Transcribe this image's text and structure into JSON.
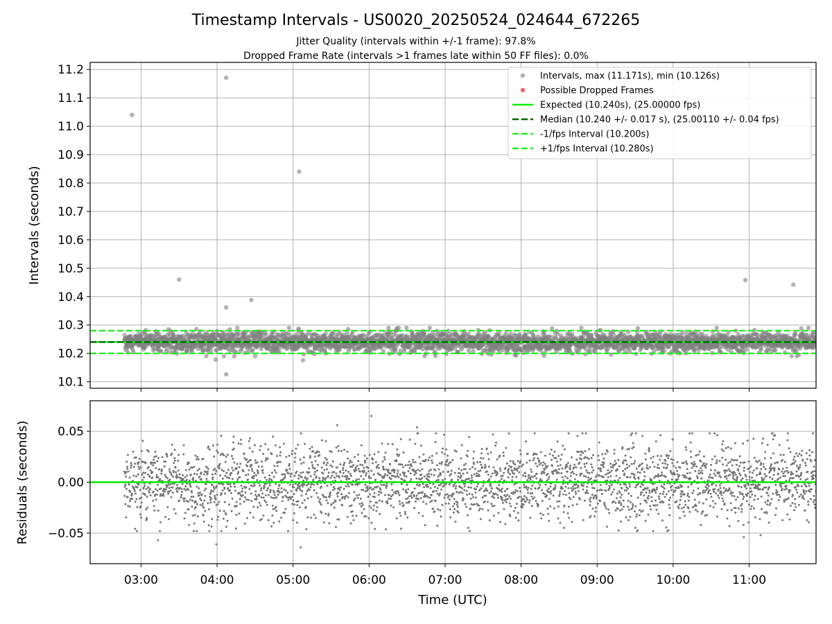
{
  "chart_data": [
    {
      "type": "scatter",
      "title": "Timestamp Intervals - US0020_20250524_024644_672265",
      "subtitle_lines": [
        "Jitter Quality (intervals within +/-1 frame): 97.8%",
        "Dropped Frame Rate (intervals >1 frames late within 50 FF files): 0.0%"
      ],
      "xlabel": "",
      "ylabel": "Intervals (seconds)",
      "x_unit": "time (UTC, hours)",
      "xlim": [
        2.33,
        11.88
      ],
      "ylim": [
        10.077,
        11.225
      ],
      "yticks": [
        10.1,
        10.2,
        10.3,
        10.4,
        10.5,
        10.6,
        10.7,
        10.8,
        10.9,
        11.0,
        11.1,
        11.2
      ],
      "ytick_labels": [
        "10.1",
        "10.2",
        "10.3",
        "10.4",
        "10.5",
        "10.6",
        "10.7",
        "10.8",
        "10.9",
        "11.0",
        "11.1",
        "11.2"
      ],
      "grid": true,
      "legend_position": "top-right",
      "legend": [
        "Intervals, max (11.171s), min (10.126s)",
        "Possible Dropped Frames",
        "Expected (10.240s), (25.00000 fps)",
        "Median (10.240 +/- 0.017 s), (25.00110 +/- 0.04 fps)",
        "-1/fps Interval (10.200s)",
        "+1/fps Interval (10.280s)"
      ],
      "series": [
        {
          "name": "Intervals, max (11.171s), min (10.126s)",
          "kind": "scatter",
          "color": "#808080",
          "x_range": [
            2.78,
            11.88
          ],
          "center": 10.24,
          "spread_sd": 0.017,
          "approx_count": 3140,
          "outliers": [
            {
              "x": 2.88,
              "y": 11.04
            },
            {
              "x": 4.12,
              "y": 11.171
            },
            {
              "x": 5.08,
              "y": 10.84
            },
            {
              "x": 3.5,
              "y": 10.46
            },
            {
              "x": 4.12,
              "y": 10.362
            },
            {
              "x": 4.45,
              "y": 10.388
            },
            {
              "x": 4.12,
              "y": 10.126
            },
            {
              "x": 10.95,
              "y": 10.458
            },
            {
              "x": 11.58,
              "y": 10.442
            },
            {
              "x": 3.98,
              "y": 10.178
            },
            {
              "x": 5.13,
              "y": 10.176
            }
          ]
        },
        {
          "name": "Possible Dropped Frames",
          "kind": "scatter",
          "color": "#f06464",
          "points": []
        },
        {
          "name": "Expected (10.240s), (25.00000 fps)",
          "kind": "hline",
          "y": 10.24,
          "color": "#00ee00",
          "style": "solid"
        },
        {
          "name": "Median (10.240 +/- 0.017 s), (25.00110 +/- 0.04 fps)",
          "kind": "hline",
          "y": 10.24,
          "color": "#006400",
          "style": "dashed"
        },
        {
          "name": "-1/fps Interval (10.200s)",
          "kind": "hline",
          "y": 10.2,
          "color": "#22ee22",
          "style": "dashed"
        },
        {
          "name": "+1/fps Interval (10.280s)",
          "kind": "hline",
          "y": 10.28,
          "color": "#22ee22",
          "style": "dashed"
        }
      ]
    },
    {
      "type": "scatter",
      "title": "",
      "xlabel": "Time (UTC)",
      "ylabel": "Residuals (seconds)",
      "x_unit": "time (UTC, hours)",
      "xlim": [
        2.33,
        11.88
      ],
      "ylim": [
        -0.08,
        0.08
      ],
      "xticks": [
        3,
        4,
        5,
        6,
        7,
        8,
        9,
        10,
        11
      ],
      "xtick_labels": [
        "03:00",
        "04:00",
        "05:00",
        "06:00",
        "07:00",
        "08:00",
        "09:00",
        "10:00",
        "11:00"
      ],
      "yticks": [
        -0.05,
        0.0,
        0.05
      ],
      "ytick_labels": [
        "−0.05",
        "0.00",
        "0.05"
      ],
      "grid": true,
      "series": [
        {
          "name": "Residuals",
          "kind": "scatter",
          "color": "#777777",
          "x_range": [
            2.78,
            11.88
          ],
          "center": 0.0,
          "spread_sd": 0.018,
          "approx_count": 3140,
          "outliers": [
            {
              "x": 6.03,
              "y": 0.065
            },
            {
              "x": 5.58,
              "y": 0.056
            },
            {
              "x": 6.63,
              "y": 0.054
            },
            {
              "x": 3.99,
              "y": -0.061
            },
            {
              "x": 5.1,
              "y": -0.064
            },
            {
              "x": 3.22,
              "y": -0.057
            },
            {
              "x": 10.93,
              "y": -0.054
            },
            {
              "x": 11.15,
              "y": -0.052
            }
          ]
        },
        {
          "name": "Zero",
          "kind": "hline",
          "y": 0.0,
          "color": "#00ee00",
          "style": "solid"
        }
      ]
    }
  ]
}
